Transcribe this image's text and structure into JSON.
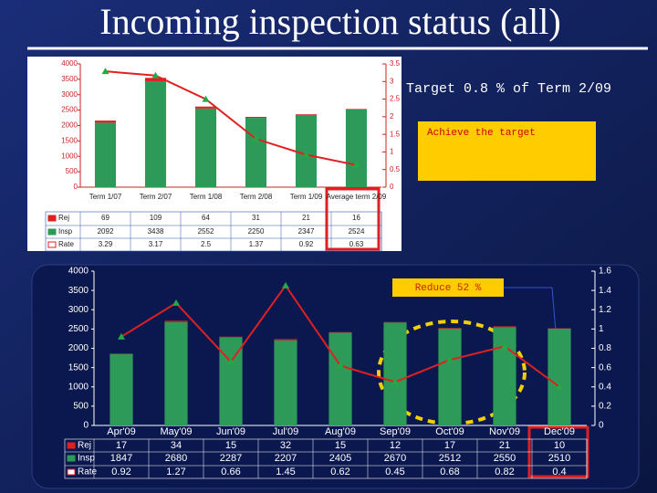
{
  "title": "Incoming inspection status (all)",
  "target_note": "Target 0.8 % of Term 2/09",
  "target_box": "Achieve the target",
  "chart_data": [
    {
      "type": "bar",
      "categories": [
        "Term 1/07",
        "Term 2/07",
        "Term 1/08",
        "Term 2/08",
        "Term 1/09",
        "Average term 2/09"
      ],
      "series": [
        {
          "name": "Rej",
          "color": "#e02020",
          "values": [
            69,
            109,
            64,
            31,
            21,
            16
          ]
        },
        {
          "name": "Insp",
          "color": "#2e9a5a",
          "values": [
            2092,
            3438,
            2552,
            2250,
            2347,
            2524
          ]
        },
        {
          "name": "Rate",
          "color": "#e02020",
          "axis": "y2",
          "type": "line",
          "values": [
            3.29,
            3.17,
            2.5,
            1.37,
            0.92,
            0.63
          ]
        }
      ],
      "ylim": [
        0,
        4000
      ],
      "yticks": [
        0,
        500,
        1000,
        1500,
        2000,
        2500,
        3000,
        3500,
        4000
      ],
      "y2lim": [
        0,
        3.5
      ],
      "y2ticks": [
        0,
        0.5,
        1,
        1.5,
        2,
        2.5,
        3,
        3.5
      ]
    },
    {
      "type": "bar",
      "categories": [
        "Apr'09",
        "May'09",
        "Jun'09",
        "Jul'09",
        "Aug'09",
        "Sep'09",
        "Oct'09",
        "Nov'09",
        "Dec'09"
      ],
      "series": [
        {
          "name": "Rej",
          "color": "#e02020",
          "values": [
            17,
            34,
            15,
            32,
            15,
            12,
            17,
            21,
            10
          ]
        },
        {
          "name": "Insp",
          "color": "#2e9a5a",
          "values": [
            1847,
            2680,
            2287,
            2207,
            2405,
            2670,
            2512,
            2550,
            2510
          ]
        },
        {
          "name": "Rate",
          "color": "#e02020",
          "axis": "y2",
          "type": "line",
          "values": [
            0.92,
            1.27,
            0.66,
            1.45,
            0.62,
            0.45,
            0.68,
            0.82,
            0.4
          ]
        }
      ],
      "ylim": [
        0,
        4000
      ],
      "yticks": [
        0,
        500,
        1000,
        1500,
        2000,
        2500,
        3000,
        3500,
        4000
      ],
      "y2lim": [
        0,
        1.6
      ],
      "y2ticks": [
        0,
        0.2,
        0.4,
        0.6,
        0.8,
        1,
        1.2,
        1.4,
        1.6
      ],
      "annotation": "Reduce 52 %"
    }
  ]
}
